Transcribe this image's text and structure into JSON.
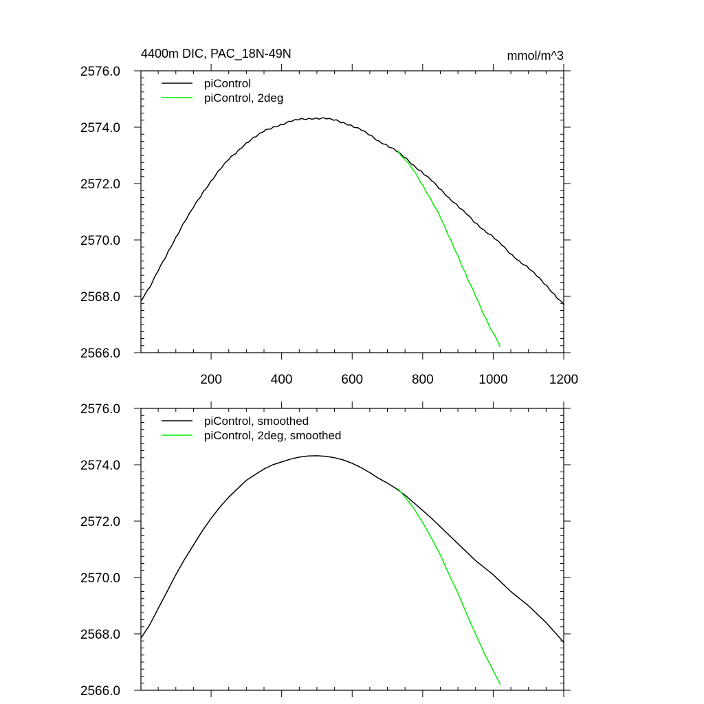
{
  "chart_data": [
    {
      "type": "line",
      "title": "4400m DIC, PAC_18N-49N",
      "units": "mmol/m^3",
      "xlim": [
        1,
        1200
      ],
      "ylim": [
        2566.0,
        2576.0
      ],
      "xticks": [
        200,
        400,
        600,
        800,
        1000,
        1200
      ],
      "xtick_labels": [
        "200",
        "400",
        "600",
        "800",
        "1000",
        "1200"
      ],
      "yticks": [
        2566.0,
        2568.0,
        2570.0,
        2572.0,
        2574.0,
        2576.0
      ],
      "ytick_labels": [
        "2566.0",
        "2568.0",
        "2570.0",
        "2572.0",
        "2574.0",
        "2576.0"
      ],
      "legend_position": "top-left",
      "series": [
        {
          "name": "piControl",
          "color": "#000000",
          "x": [
            1,
            25,
            50,
            75,
            100,
            125,
            150,
            175,
            200,
            225,
            250,
            275,
            300,
            325,
            350,
            375,
            400,
            425,
            450,
            475,
            500,
            525,
            550,
            575,
            600,
            625,
            650,
            675,
            700,
            725,
            750,
            775,
            800,
            825,
            850,
            875,
            900,
            925,
            950,
            975,
            1000,
            1025,
            1050,
            1075,
            1100,
            1125,
            1150,
            1175,
            1200
          ],
          "y": [
            2567.85,
            2568.3,
            2568.9,
            2569.5,
            2570.1,
            2570.65,
            2571.15,
            2571.65,
            2572.1,
            2572.5,
            2572.85,
            2573.15,
            2573.45,
            2573.65,
            2573.85,
            2574.0,
            2574.1,
            2574.2,
            2574.27,
            2574.31,
            2574.32,
            2574.3,
            2574.25,
            2574.17,
            2574.05,
            2573.9,
            2573.72,
            2573.52,
            2573.35,
            2573.15,
            2572.92,
            2572.65,
            2572.38,
            2572.1,
            2571.8,
            2571.5,
            2571.2,
            2570.9,
            2570.6,
            2570.35,
            2570.1,
            2569.8,
            2569.5,
            2569.25,
            2569.0,
            2568.7,
            2568.4,
            2568.05,
            2567.7
          ]
        },
        {
          "name": "piControl, 2deg",
          "color": "#00ee00",
          "x": [
            730,
            750,
            775,
            800,
            825,
            850,
            875,
            900,
            925,
            950,
            975,
            1000,
            1020
          ],
          "y": [
            2573.15,
            2572.85,
            2572.45,
            2571.95,
            2571.4,
            2570.8,
            2570.1,
            2569.45,
            2568.7,
            2568.0,
            2567.3,
            2566.7,
            2566.2
          ]
        }
      ]
    },
    {
      "type": "line",
      "title": "",
      "xlim": [
        1,
        1200
      ],
      "ylim": [
        2566.0,
        2576.0
      ],
      "xticks": [
        200,
        400,
        600,
        800,
        1000,
        1200
      ],
      "yticks": [
        2566.0,
        2568.0,
        2570.0,
        2572.0,
        2574.0,
        2576.0
      ],
      "ytick_labels": [
        "2566.0",
        "2568.0",
        "2570.0",
        "2572.0",
        "2574.0",
        "2576.0"
      ],
      "legend_position": "top-left",
      "series": [
        {
          "name": "piControl, smoothed",
          "color": "#000000",
          "x": [
            1,
            25,
            50,
            75,
            100,
            125,
            150,
            175,
            200,
            225,
            250,
            275,
            300,
            325,
            350,
            375,
            400,
            425,
            450,
            475,
            500,
            525,
            550,
            575,
            600,
            625,
            650,
            675,
            700,
            725,
            750,
            775,
            800,
            825,
            850,
            875,
            900,
            925,
            950,
            975,
            1000,
            1025,
            1050,
            1075,
            1100,
            1125,
            1150,
            1175,
            1200
          ],
          "y": [
            2567.85,
            2568.3,
            2568.9,
            2569.5,
            2570.1,
            2570.65,
            2571.15,
            2571.65,
            2572.1,
            2572.5,
            2572.85,
            2573.15,
            2573.45,
            2573.65,
            2573.85,
            2574.0,
            2574.1,
            2574.2,
            2574.27,
            2574.31,
            2574.32,
            2574.3,
            2574.25,
            2574.17,
            2574.05,
            2573.9,
            2573.72,
            2573.52,
            2573.35,
            2573.15,
            2572.92,
            2572.65,
            2572.38,
            2572.1,
            2571.8,
            2571.5,
            2571.2,
            2570.9,
            2570.6,
            2570.35,
            2570.1,
            2569.8,
            2569.5,
            2569.25,
            2569.0,
            2568.7,
            2568.4,
            2568.05,
            2567.7
          ]
        },
        {
          "name": "piControl, 2deg, smoothed",
          "color": "#00ee00",
          "x": [
            730,
            750,
            775,
            800,
            825,
            850,
            875,
            900,
            925,
            950,
            975,
            1000,
            1020
          ],
          "y": [
            2573.15,
            2572.85,
            2572.45,
            2571.95,
            2571.4,
            2570.8,
            2570.1,
            2569.45,
            2568.7,
            2568.0,
            2567.3,
            2566.7,
            2566.2
          ]
        }
      ]
    }
  ]
}
